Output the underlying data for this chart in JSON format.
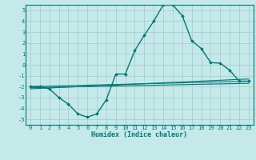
{
  "title": "",
  "xlabel": "Humidex (Indice chaleur)",
  "ylabel": "",
  "background_color": "#c5e8e8",
  "grid_color": "#a8d0d0",
  "line_color": "#007878",
  "spine_color": "#007878",
  "xlim": [
    -0.5,
    23.5
  ],
  "ylim": [
    -5.5,
    5.5
  ],
  "xticks": [
    0,
    1,
    2,
    3,
    4,
    5,
    6,
    7,
    8,
    9,
    10,
    11,
    12,
    13,
    14,
    15,
    16,
    17,
    18,
    19,
    20,
    21,
    22,
    23
  ],
  "yticks": [
    -5,
    -4,
    -3,
    -2,
    -1,
    0,
    1,
    2,
    3,
    4,
    5
  ],
  "series": [
    {
      "x": [
        0,
        1,
        2,
        3,
        4,
        5,
        6,
        7,
        8,
        9,
        10,
        11,
        12,
        13,
        14,
        15,
        16,
        17,
        18,
        19,
        20,
        21,
        22,
        23
      ],
      "y": [
        -2.0,
        -2.0,
        -2.2,
        -3.0,
        -3.6,
        -4.5,
        -4.8,
        -4.5,
        -3.2,
        -0.85,
        -0.85,
        1.3,
        2.7,
        4.0,
        5.5,
        5.5,
        4.5,
        2.2,
        1.5,
        0.2,
        0.15,
        -0.5,
        -1.5,
        -1.5
      ],
      "marker": "D",
      "marker_size": 1.8,
      "line_width": 1.0
    },
    {
      "x": [
        0,
        23
      ],
      "y": [
        -2.0,
        -1.5
      ],
      "marker": null,
      "line_width": 0.8
    },
    {
      "x": [
        0,
        23
      ],
      "y": [
        -2.1,
        -1.7
      ],
      "marker": null,
      "line_width": 0.8
    },
    {
      "x": [
        0,
        23
      ],
      "y": [
        -2.2,
        -1.3
      ],
      "marker": null,
      "line_width": 0.8
    }
  ],
  "tick_fontsize": 5.0,
  "xlabel_fontsize": 6.0,
  "xlabel_fontweight": "bold"
}
